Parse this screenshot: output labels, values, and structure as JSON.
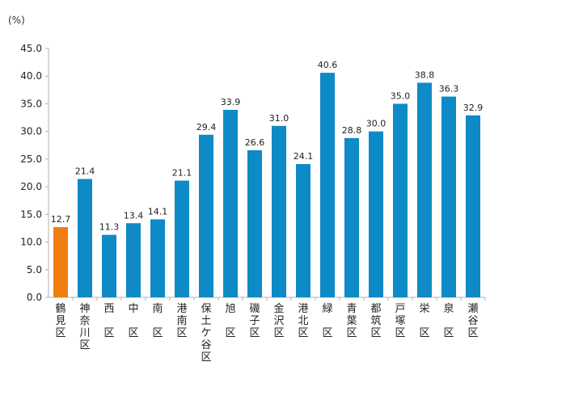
{
  "chart_data": {
    "type": "bar",
    "unit_label": "(%)",
    "categories": [
      "鶴見区",
      "神奈川区",
      "西区",
      "中区",
      "南区",
      "港南区",
      "保土ケ谷区",
      "旭区",
      "磯子区",
      "金沢区",
      "港北区",
      "緑区",
      "青葉区",
      "都筑区",
      "戸塚区",
      "栄区",
      "泉区",
      "瀬谷区"
    ],
    "category_lines": [
      [
        "鶴",
        "見",
        "区"
      ],
      [
        "神",
        "奈",
        "川",
        "区"
      ],
      [
        "西",
        "",
        "区"
      ],
      [
        "中",
        "",
        "区"
      ],
      [
        "南",
        "",
        "区"
      ],
      [
        "港",
        "南",
        "区"
      ],
      [
        "保",
        "土",
        "ケ",
        "谷",
        "区"
      ],
      [
        "旭",
        "",
        "区"
      ],
      [
        "磯",
        "子",
        "区"
      ],
      [
        "金",
        "沢",
        "区"
      ],
      [
        "港",
        "北",
        "区"
      ],
      [
        "緑",
        "",
        "区"
      ],
      [
        "青",
        "葉",
        "区"
      ],
      [
        "都",
        "筑",
        "区"
      ],
      [
        "戸",
        "塚",
        "区"
      ],
      [
        "栄",
        "",
        "区"
      ],
      [
        "泉",
        "",
        "区"
      ],
      [
        "瀬",
        "谷",
        "区"
      ]
    ],
    "values": [
      12.7,
      21.4,
      11.3,
      13.4,
      14.1,
      21.1,
      29.4,
      33.9,
      26.6,
      31.0,
      24.1,
      40.6,
      28.8,
      30.0,
      35.0,
      38.8,
      36.3,
      32.9
    ],
    "value_labels": [
      "12.7",
      "21.4",
      "11.3",
      "13.4",
      "14.1",
      "21.1",
      "29.4",
      "33.9",
      "26.6",
      "31.0",
      "24.1",
      "40.6",
      "28.8",
      "30.0",
      "35.0",
      "38.8",
      "36.3",
      "32.9"
    ],
    "highlight_index": 0,
    "ylim": [
      0,
      45
    ],
    "yticks": [
      "0.0",
      "5.0",
      "10.0",
      "15.0",
      "20.0",
      "25.0",
      "30.0",
      "35.0",
      "40.0",
      "45.0"
    ],
    "ytick_values": [
      0,
      5,
      10,
      15,
      20,
      25,
      30,
      35,
      40,
      45
    ],
    "colors": {
      "bar": "#0e8ac7",
      "highlight": "#f07d12",
      "axis": "#b0b0b0",
      "text": "#222222"
    },
    "grid": false,
    "legend": "none"
  }
}
